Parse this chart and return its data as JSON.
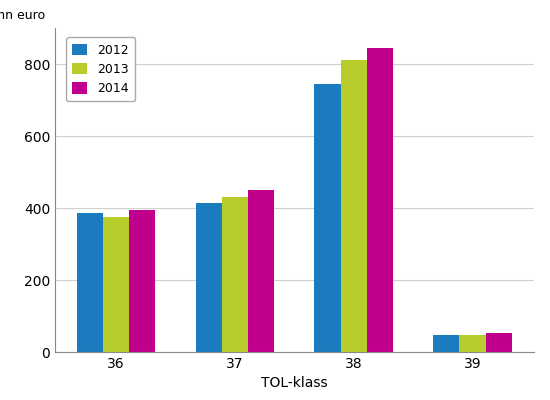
{
  "categories": [
    "36",
    "37",
    "38",
    "39"
  ],
  "series": {
    "2012": [
      385,
      415,
      745,
      48
    ],
    "2013": [
      375,
      430,
      810,
      46
    ],
    "2014": [
      395,
      450,
      845,
      53
    ]
  },
  "colors": {
    "2012": "#1b7bbf",
    "2013": "#b8cc2c",
    "2014": "#c0008c"
  },
  "ylabel": "mn euro",
  "xlabel": "TOL-klass",
  "ylim": [
    0,
    900
  ],
  "yticks": [
    0,
    200,
    400,
    600,
    800
  ],
  "bar_width": 0.22,
  "legend_labels": [
    "2012",
    "2013",
    "2014"
  ],
  "background_color": "#ffffff",
  "grid_color": "#d0d0d0"
}
